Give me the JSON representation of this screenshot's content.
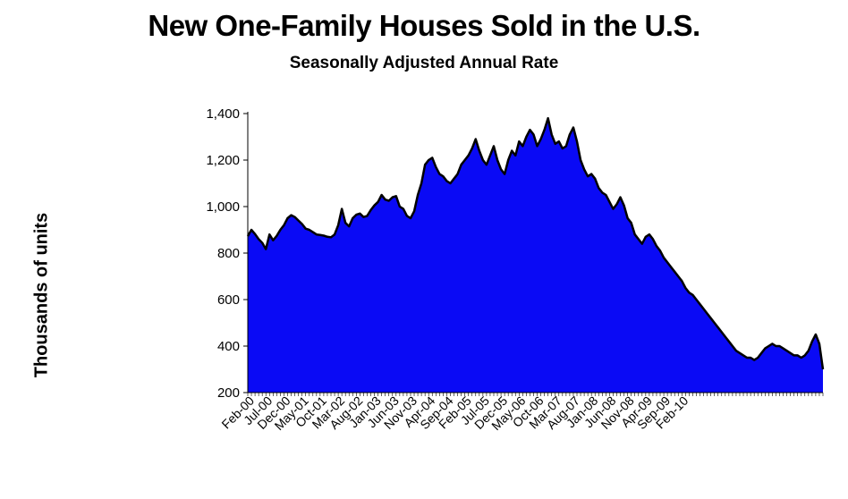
{
  "chart_data": {
    "type": "area",
    "title": "New One-Family Houses Sold in the U.S.",
    "subtitle": "Seasonally Adjusted Annual Rate",
    "ylabel": "Thousands of units",
    "xlabel": "",
    "ylim": [
      200,
      1400
    ],
    "yticks": [
      200,
      400,
      600,
      800,
      1000,
      1200,
      1400
    ],
    "ytick_labels": [
      "200",
      "400",
      "600",
      "800",
      "1,000",
      "1,200",
      "1,400"
    ],
    "xtick_labels": [
      "Feb-00",
      "Jul-00",
      "Dec-00",
      "May-01",
      "Oct-01",
      "Mar-02",
      "Aug-02",
      "Jan-03",
      "Jun-03",
      "Nov-03",
      "Apr-04",
      "Sep-04",
      "Feb-05",
      "Jul-05",
      "Dec-05",
      "May-06",
      "Oct-06",
      "Mar-07",
      "Aug-07",
      "Jan-08",
      "Jun-08",
      "Nov-08",
      "Apr-09",
      "Sep-09",
      "Feb-10"
    ],
    "fill_color": "#0a0af5",
    "line_color": "#000000",
    "series": [
      {
        "name": "New one-family houses sold",
        "x_start": "Jan-00",
        "values": [
          873,
          900,
          882,
          860,
          844,
          817,
          880,
          855,
          874,
          900,
          920,
          950,
          963,
          955,
          940,
          925,
          905,
          900,
          890,
          880,
          878,
          875,
          870,
          868,
          880,
          920,
          990,
          930,
          915,
          950,
          965,
          970,
          955,
          960,
          985,
          1005,
          1020,
          1050,
          1030,
          1025,
          1040,
          1045,
          1000,
          990,
          960,
          950,
          980,
          1050,
          1100,
          1180,
          1200,
          1210,
          1170,
          1140,
          1130,
          1110,
          1100,
          1120,
          1140,
          1180,
          1200,
          1220,
          1250,
          1290,
          1240,
          1200,
          1180,
          1220,
          1260,
          1200,
          1160,
          1140,
          1200,
          1240,
          1220,
          1280,
          1260,
          1300,
          1330,
          1310,
          1260,
          1290,
          1330,
          1380,
          1310,
          1270,
          1280,
          1250,
          1260,
          1310,
          1340,
          1280,
          1200,
          1160,
          1130,
          1140,
          1120,
          1080,
          1060,
          1050,
          1020,
          990,
          1010,
          1040,
          1005,
          950,
          930,
          880,
          860,
          840,
          870,
          880,
          860,
          830,
          810,
          780,
          760,
          740,
          720,
          700,
          680,
          650,
          630,
          620,
          600,
          580,
          560,
          540,
          520,
          500,
          480,
          460,
          440,
          420,
          400,
          380,
          370,
          360,
          350,
          350,
          340,
          350,
          370,
          390,
          400,
          410,
          400,
          400,
          390,
          380,
          370,
          360,
          360,
          350,
          360,
          380,
          420,
          450,
          410,
          300
        ]
      }
    ]
  }
}
